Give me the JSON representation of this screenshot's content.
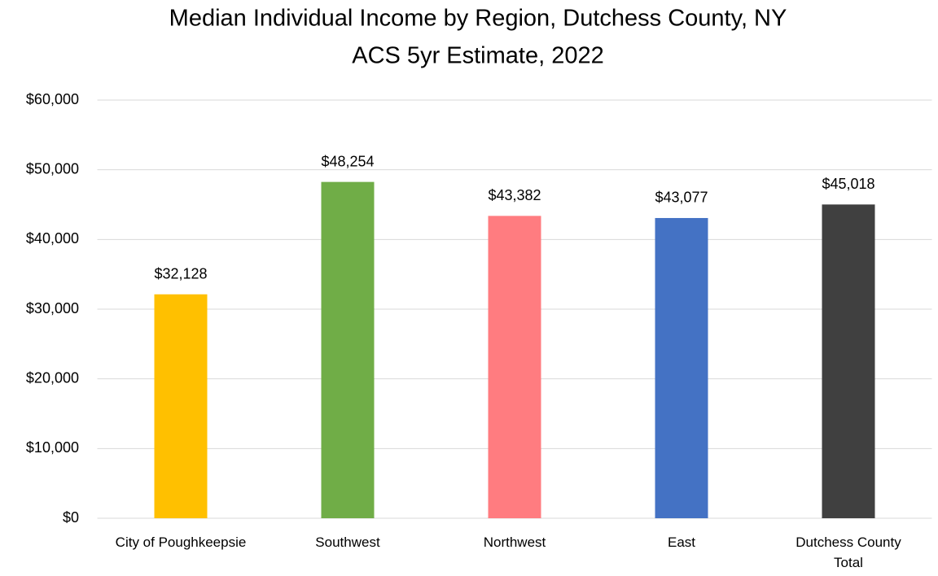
{
  "chart_data": {
    "type": "bar",
    "title": "Median Individual Income by Region, Dutchess County, NY",
    "subtitle": "ACS 5yr Estimate, 2022",
    "categories": [
      "City of Poughkeepsie",
      "Southwest",
      "Northwest",
      "East",
      "Dutchess County Total"
    ],
    "values": [
      32128,
      48254,
      43382,
      43077,
      45018
    ],
    "value_labels": [
      "$32,128",
      "$48,254",
      "$43,382",
      "$43,077",
      "$45,018"
    ],
    "colors": [
      "#ffc000",
      "#70ad47",
      "#ff7c80",
      "#4472c4",
      "#404040"
    ],
    "ylim": [
      0,
      60000
    ],
    "yticks": [
      {
        "value": 0,
        "label": "$0"
      },
      {
        "value": 10000,
        "label": "$10,000"
      },
      {
        "value": 20000,
        "label": "$20,000"
      },
      {
        "value": 30000,
        "label": "$30,000"
      },
      {
        "value": 40000,
        "label": "$40,000"
      },
      {
        "value": 50000,
        "label": "$50,000"
      },
      {
        "value": 60000,
        "label": "$60,000"
      }
    ],
    "grid": true
  }
}
